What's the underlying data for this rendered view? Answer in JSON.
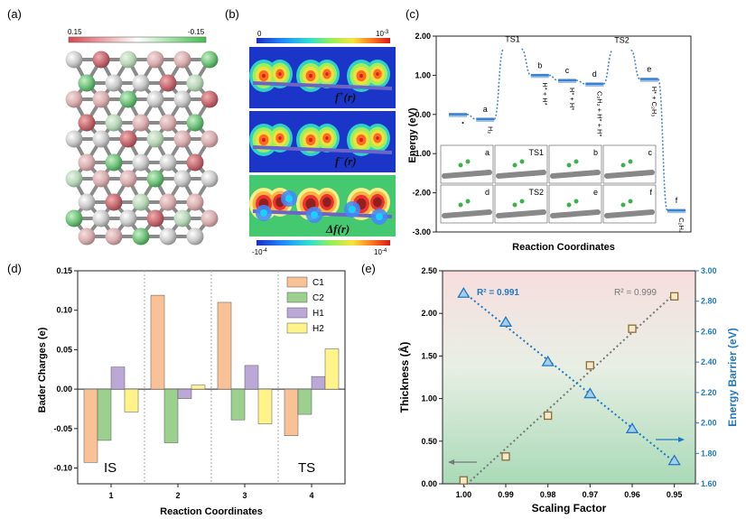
{
  "panels": {
    "a": {
      "label": "(a)",
      "colorbar": {
        "left": "0.15",
        "right": "-0.15",
        "colors": [
          "#d9474f",
          "#ffffff",
          "#3ec24a"
        ]
      }
    },
    "b": {
      "label": "(b)",
      "top_scale": {
        "left": "0",
        "right": "10",
        "right_exp": "-3"
      },
      "bottom_scale": {
        "left": "-10",
        "left_exp": "-4",
        "right": "10",
        "right_exp": "-4"
      },
      "rows": [
        {
          "fn": "f",
          "sup": "+"
        },
        {
          "fn": "f",
          "sup": "−"
        },
        {
          "fn": "Δf",
          "sup": ""
        }
      ],
      "arg": "(r)"
    },
    "c": {
      "label": "(c)",
      "insets": [
        "a",
        "TS1",
        "b",
        "c",
        "d",
        "TS2",
        "e",
        "f"
      ]
    },
    "d": {
      "label": "(d)"
    },
    "e": {
      "label": "(e)"
    }
  },
  "chart_data": [
    {
      "id": "c",
      "type": "line",
      "xlabel": "Reaction Coordinates",
      "ylabel": "Energy (eV)",
      "ylim": [
        -3.0,
        2.0
      ],
      "yticks": [
        "-3.00",
        "-2.00",
        "-1.00",
        "0.00",
        "1.00",
        "2.00"
      ],
      "states": [
        {
          "label": "",
          "energy": 0.0,
          "species": "•"
        },
        {
          "label": "a",
          "energy": -0.12,
          "species": "H₂"
        },
        {
          "label": "TS1",
          "energy": 1.67
        },
        {
          "label": "b",
          "energy": 1.0,
          "species": "H* + H*"
        },
        {
          "label": "c",
          "energy": 0.87,
          "species": "H* + H*"
        },
        {
          "label": "d",
          "energy": 0.78,
          "species": "C₂H₂ + H* + H*"
        },
        {
          "label": "TS2",
          "energy": 1.64
        },
        {
          "label": "e",
          "energy": 0.9,
          "species": "H* + C₂H₃"
        },
        {
          "label": "f",
          "energy": -2.45,
          "species": "C₂H₄"
        }
      ],
      "color": "#4a86c8"
    },
    {
      "id": "d",
      "type": "bar",
      "xlabel": "Reaction Coordinates",
      "ylabel": "Bader Charges (e)",
      "ylim": [
        -0.12,
        0.15
      ],
      "yticks": [
        "-0.10",
        "-0.05",
        "0.00",
        "0.05",
        "0.10",
        "0.15"
      ],
      "categories": [
        "1",
        "2",
        "3",
        "4"
      ],
      "series": [
        {
          "name": "C1",
          "color": "#f9c196",
          "values": [
            -0.093,
            0.119,
            0.11,
            -0.059
          ]
        },
        {
          "name": "C2",
          "color": "#9bd08e",
          "values": [
            -0.065,
            -0.068,
            -0.039,
            -0.032
          ]
        },
        {
          "name": "H1",
          "color": "#bba8d6",
          "values": [
            0.028,
            -0.012,
            0.03,
            0.016
          ]
        },
        {
          "name": "H2",
          "color": "#fff38a",
          "values": [
            -0.029,
            0.005,
            -0.044,
            0.051
          ]
        }
      ],
      "annotations": [
        "IS",
        "TS"
      ]
    },
    {
      "id": "e",
      "type": "scatter",
      "xlabel": "Scaling Factor",
      "ylabel_left": "Thickness (Å)",
      "ylabel_right": "Energy Barrier (eV)",
      "x": [
        1.0,
        0.99,
        0.98,
        0.97,
        0.96,
        0.95
      ],
      "xticks": [
        "1.00",
        "0.99",
        "0.98",
        "0.97",
        "0.96",
        "0.95"
      ],
      "ylim_left": [
        0.0,
        2.5
      ],
      "yticks_left": [
        "0.00",
        "0.50",
        "1.00",
        "1.50",
        "2.00",
        "2.50"
      ],
      "ylim_right": [
        1.6,
        3.0
      ],
      "yticks_right": [
        "1.60",
        "1.80",
        "2.00",
        "2.20",
        "2.40",
        "2.60",
        "2.80",
        "3.00"
      ],
      "series": [
        {
          "name": "Thickness",
          "axis": "left",
          "color": "#777777",
          "values": [
            0.04,
            0.32,
            0.8,
            1.39,
            1.82,
            2.2
          ]
        },
        {
          "name": "Energy Barrier",
          "axis": "right",
          "color": "#1f78c1",
          "values": [
            2.85,
            2.66,
            2.4,
            2.19,
            1.96,
            1.75
          ]
        }
      ],
      "r2_left": "R² = 0.991",
      "r2_right": "R² = 0.999"
    }
  ]
}
